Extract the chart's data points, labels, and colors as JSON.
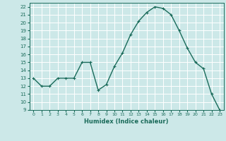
{
  "xlabel": "Humidex (Indice chaleur)",
  "x": [
    0,
    1,
    2,
    3,
    4,
    5,
    6,
    7,
    8,
    9,
    10,
    11,
    12,
    13,
    14,
    15,
    16,
    17,
    18,
    19,
    20,
    21,
    22,
    23
  ],
  "y": [
    13,
    12,
    12,
    13,
    13,
    13,
    15,
    15,
    11.5,
    12.2,
    14.5,
    16.2,
    18.5,
    20.2,
    21.3,
    22.0,
    21.8,
    21.0,
    19.0,
    16.8,
    15.0,
    14.2,
    11.0,
    9.0
  ],
  "ylim": [
    9,
    22.5
  ],
  "xlim": [
    -0.5,
    23.5
  ],
  "yticks": [
    9,
    10,
    11,
    12,
    13,
    14,
    15,
    16,
    17,
    18,
    19,
    20,
    21,
    22
  ],
  "xticks": [
    0,
    1,
    2,
    3,
    4,
    5,
    6,
    7,
    8,
    9,
    10,
    11,
    12,
    13,
    14,
    15,
    16,
    17,
    18,
    19,
    20,
    21,
    22,
    23
  ],
  "line_color": "#1a6b5a",
  "bg_color": "#cce8e8",
  "grid_color": "#ffffff",
  "marker": "+",
  "marker_size": 3,
  "line_width": 1.0
}
